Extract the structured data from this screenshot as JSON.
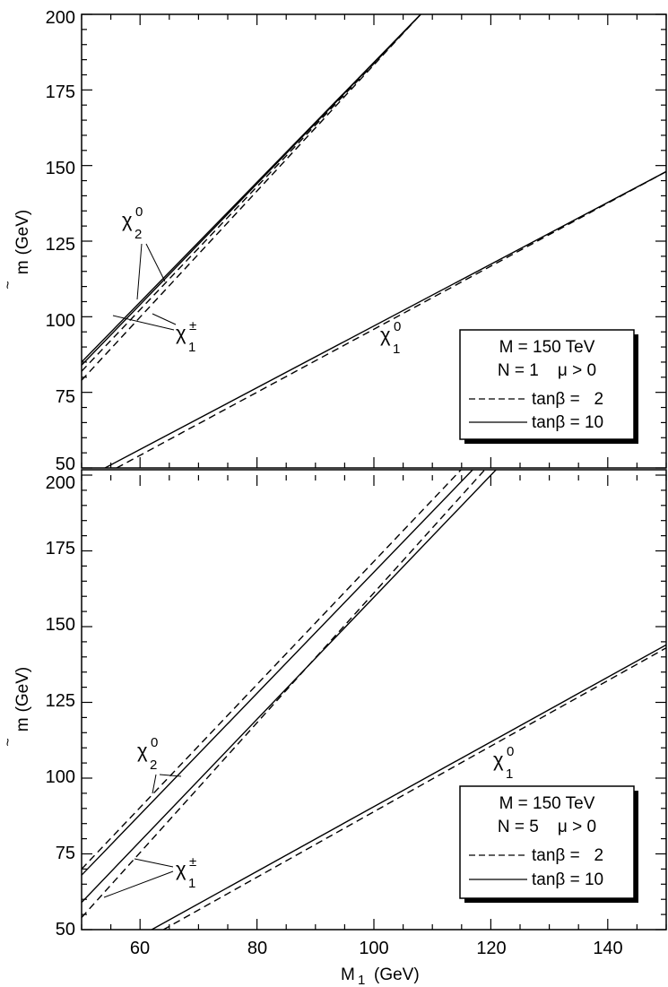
{
  "chart_data": [
    {
      "type": "line",
      "panel": "top",
      "xlabel": "",
      "ylabel_main": "m",
      "ylabel_unit": "(GeV)",
      "xlim": [
        50,
        150
      ],
      "ylim": [
        50,
        200
      ],
      "yticks": [
        50,
        75,
        100,
        125,
        150,
        175,
        200
      ],
      "legend": {
        "position": "bottom-right",
        "lines": [
          "M = 150 TeV",
          "N = 1    μ > 0"
        ],
        "entries": [
          {
            "style": "dashed",
            "label": "tanβ =   2"
          },
          {
            "style": "solid",
            "label": "tanβ = 10"
          }
        ]
      },
      "annotations": [
        {
          "sym": "χ",
          "sub": "2",
          "sup": "0"
        },
        {
          "sym": "χ",
          "sub": "1",
          "sup": "±"
        },
        {
          "sym": "χ",
          "sub": "1",
          "sup": "0"
        }
      ],
      "series": [
        {
          "style": "solid",
          "x": [
            50,
            108
          ],
          "y": [
            85,
            200
          ]
        },
        {
          "style": "solid",
          "x": [
            50,
            108
          ],
          "y": [
            84,
            200
          ]
        },
        {
          "style": "dashed",
          "x": [
            50,
            108
          ],
          "y": [
            82,
            200
          ]
        },
        {
          "style": "dashed",
          "x": [
            50,
            108
          ],
          "y": [
            79,
            200
          ]
        },
        {
          "style": "solid",
          "x": [
            54,
            150
          ],
          "y": [
            50,
            148
          ]
        },
        {
          "style": "dashed",
          "x": [
            56,
            150
          ],
          "y": [
            50,
            148
          ]
        }
      ]
    },
    {
      "type": "line",
      "panel": "bottom",
      "xlabel_main": "M",
      "xlabel_sub": "1",
      "xlabel_unit": "(GeV)",
      "ylabel_main": "m",
      "ylabel_unit": "(GeV)",
      "xlim": [
        50,
        150
      ],
      "ylim": [
        50,
        200
      ],
      "xticks": [
        60,
        80,
        100,
        120,
        140
      ],
      "yticks": [
        50,
        75,
        100,
        125,
        150,
        175,
        200
      ],
      "legend": {
        "position": "bottom-right",
        "lines": [
          "M = 150 TeV",
          "N = 5    μ > 0"
        ],
        "entries": [
          {
            "style": "dashed",
            "label": "tanβ =   2"
          },
          {
            "style": "solid",
            "label": "tanβ = 10"
          }
        ]
      },
      "annotations": [
        {
          "sym": "χ",
          "sub": "2",
          "sup": "0"
        },
        {
          "sym": "χ",
          "sub": "1",
          "sup": "±"
        },
        {
          "sym": "χ",
          "sub": "1",
          "sup": "0"
        }
      ],
      "series": [
        {
          "style": "dashed",
          "x": [
            50,
            116
          ],
          "y": [
            70,
            204
          ]
        },
        {
          "style": "solid",
          "x": [
            50,
            118
          ],
          "y": [
            68,
            204
          ]
        },
        {
          "style": "solid",
          "x": [
            50,
            122
          ],
          "y": [
            59,
            204
          ]
        },
        {
          "style": "dashed",
          "x": [
            50,
            120
          ],
          "y": [
            54,
            204
          ]
        },
        {
          "style": "solid",
          "x": [
            62,
            150
          ],
          "y": [
            50,
            144
          ]
        },
        {
          "style": "dashed",
          "x": [
            64,
            150
          ],
          "y": [
            50,
            143
          ]
        }
      ]
    }
  ]
}
